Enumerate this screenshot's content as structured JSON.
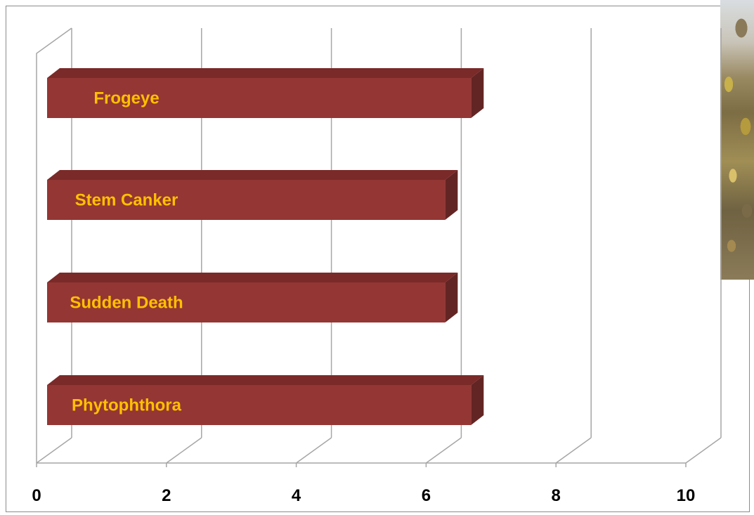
{
  "chart_data": {
    "type": "bar",
    "orientation": "horizontal",
    "three_d": true,
    "title": "",
    "xlabel": "",
    "ylabel": "",
    "categories": [
      "Frogeye",
      "Stem Canker",
      "Sudden Death",
      "Phytophthora"
    ],
    "values": [
      6.8,
      6.4,
      6.4,
      6.8
    ],
    "xlim": [
      0,
      10
    ],
    "x_ticks": [
      "0",
      "2",
      "4",
      "6",
      "8",
      "10"
    ],
    "category_labels_inside_bars": true,
    "grid": true,
    "legend": "none",
    "colors": {
      "bar_front": "#943634",
      "bar_top": "#7a2a28",
      "bar_side": "#632523",
      "bar_label": "#ffc000",
      "grid": "#a6a6a6",
      "tick_label": "#000000"
    }
  },
  "decorations": {
    "photo": "soybean-field-photo"
  }
}
